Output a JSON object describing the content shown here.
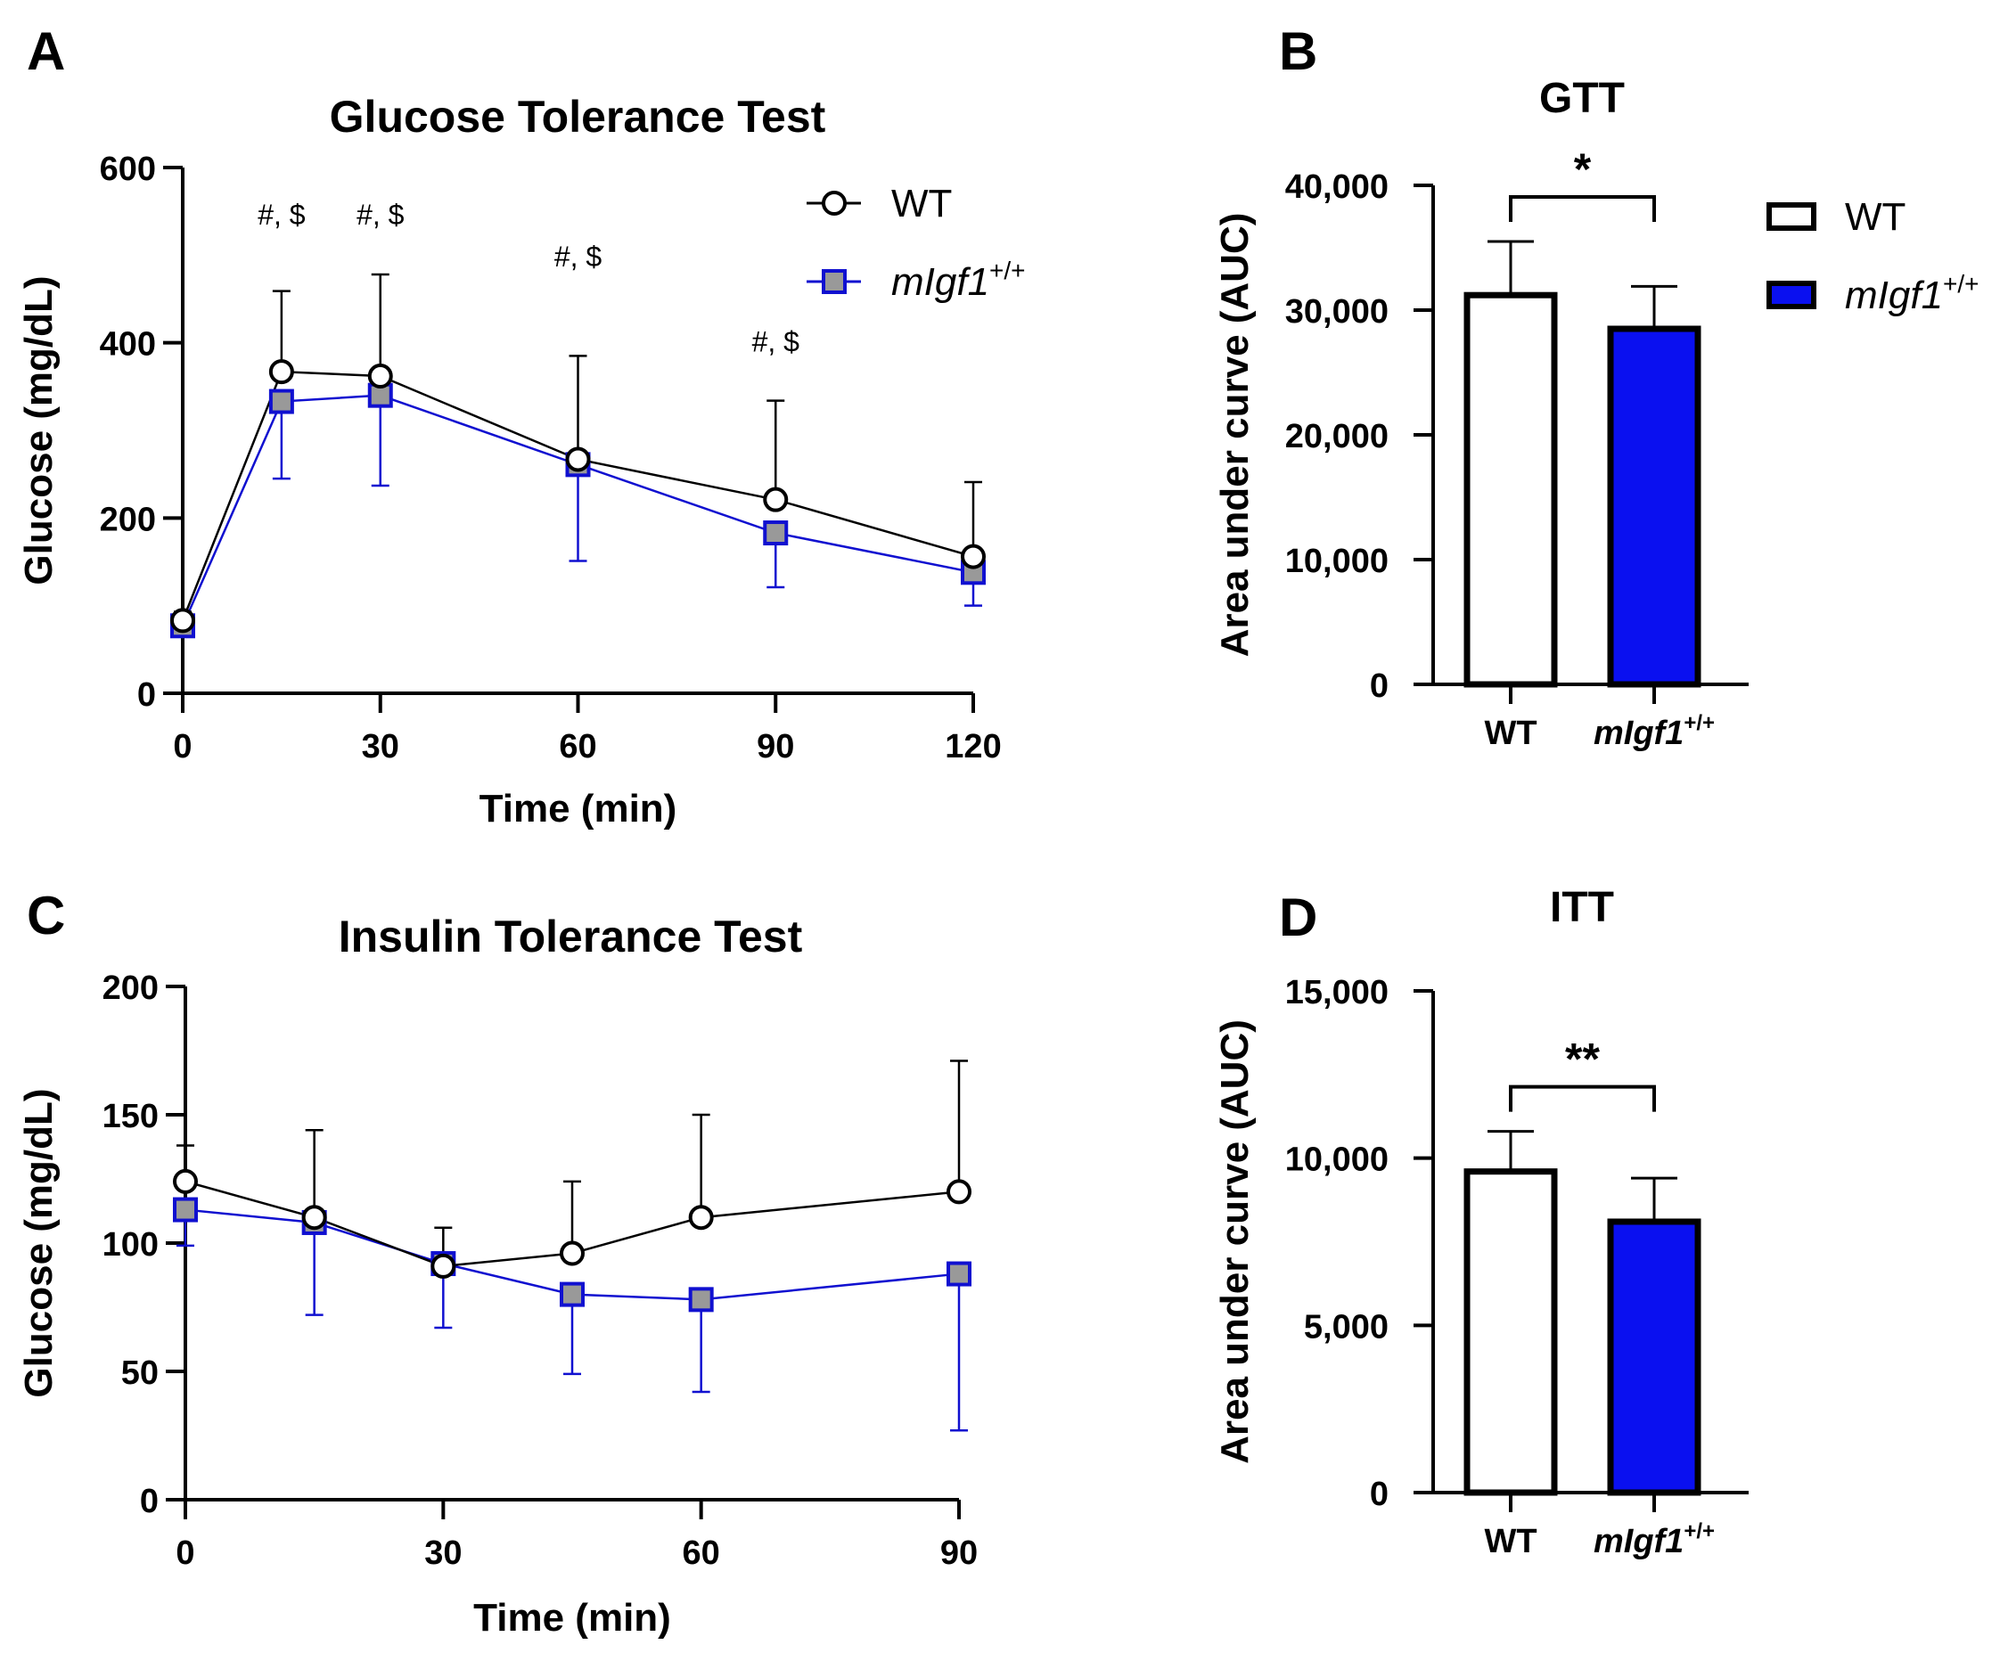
{
  "colors": {
    "wt_stroke": "#000000",
    "wt_fill": "#ffffff",
    "mig_stroke": "#1010d0",
    "mig_fill": "#999999",
    "bar_blue": "#0a10f0"
  },
  "legend": {
    "wt": "WT",
    "mig_base": "mIgf1",
    "mig_sup": "+/+"
  },
  "chart_data": [
    {
      "id": "A",
      "panel_label": "A",
      "type": "line",
      "title": "Glucose Tolerance Test",
      "xlabel": "Time (min)",
      "ylabel": "Glucose (mg/dL)",
      "xlim": [
        0,
        120
      ],
      "ylim": [
        0,
        600
      ],
      "x_ticks": [
        0,
        30,
        60,
        90,
        120
      ],
      "y_ticks": [
        0,
        200,
        400,
        600
      ],
      "x_tick_labels": [
        "0",
        "30",
        "60",
        "90",
        "120"
      ],
      "y_tick_labels": [
        "0",
        "200",
        "400",
        "600"
      ],
      "x": [
        0,
        15,
        30,
        60,
        90,
        120
      ],
      "series": [
        {
          "name": "WT",
          "values": [
            83,
            367,
            362,
            267,
            221,
            156
          ],
          "err": [
            10,
            92,
            116,
            118,
            113,
            85
          ]
        },
        {
          "name": "mIgf1+/+",
          "values": [
            77,
            333,
            340,
            261,
            183,
            138
          ],
          "err": [
            8,
            88,
            103,
            110,
            62,
            38
          ]
        }
      ],
      "annotations": [
        {
          "text": "#, $",
          "x": 15,
          "y": 535
        },
        {
          "text": "#, $",
          "x": 30,
          "y": 535
        },
        {
          "text": "#, $",
          "x": 60,
          "y": 487
        },
        {
          "text": "#, $",
          "x": 90,
          "y": 390
        }
      ]
    },
    {
      "id": "B",
      "panel_label": "B",
      "type": "bar",
      "title": "GTT",
      "ylabel": "Area under curve (AUC)",
      "categories": [
        "WT",
        "mIgf1+/+"
      ],
      "cat_labels": [
        {
          "base": "WT",
          "sup": ""
        },
        {
          "base": "mIgf1",
          "sup": "+/+"
        }
      ],
      "values": [
        31200,
        28500
      ],
      "err": [
        4300,
        3400
      ],
      "ylim": [
        0,
        40000
      ],
      "y_ticks": [
        0,
        10000,
        20000,
        30000,
        40000
      ],
      "y_tick_labels": [
        "0",
        "10,000",
        "20,000",
        "30,000",
        "40,000"
      ],
      "significance": "*"
    },
    {
      "id": "C",
      "panel_label": "C",
      "type": "line",
      "title": "Insulin Tolerance Test",
      "xlabel": "Time (min)",
      "ylabel": "Glucose (mg/dL)",
      "xlim": [
        0,
        90
      ],
      "ylim": [
        0,
        200
      ],
      "x_ticks": [
        0,
        30,
        60,
        90
      ],
      "y_ticks": [
        0,
        50,
        100,
        150,
        200
      ],
      "x_tick_labels": [
        "0",
        "30",
        "60",
        "90"
      ],
      "y_tick_labels": [
        "0",
        "50",
        "100",
        "150",
        "200"
      ],
      "x": [
        0,
        15,
        30,
        45,
        60,
        90
      ],
      "series": [
        {
          "name": "WT",
          "values": [
            124,
            110,
            91,
            96,
            110,
            120
          ],
          "err": [
            14,
            34,
            15,
            28,
            40,
            51
          ]
        },
        {
          "name": "mIgf1+/+",
          "values": [
            113,
            108,
            92,
            80,
            78,
            88
          ],
          "err": [
            14,
            36,
            25,
            31,
            36,
            61
          ]
        }
      ],
      "annotations": []
    },
    {
      "id": "D",
      "panel_label": "D",
      "type": "bar",
      "title": "ITT",
      "ylabel": "Area under curve (AUC)",
      "categories": [
        "WT",
        "mIgf1+/+"
      ],
      "cat_labels": [
        {
          "base": "WT",
          "sup": ""
        },
        {
          "base": "mIgf1",
          "sup": "+/+"
        }
      ],
      "values": [
        9600,
        8100
      ],
      "err": [
        1200,
        1300
      ],
      "ylim": [
        0,
        15000
      ],
      "y_ticks": [
        0,
        5000,
        10000,
        15000
      ],
      "y_tick_labels": [
        "0",
        "5,000",
        "10,000",
        "15,000"
      ],
      "significance": "**"
    }
  ]
}
